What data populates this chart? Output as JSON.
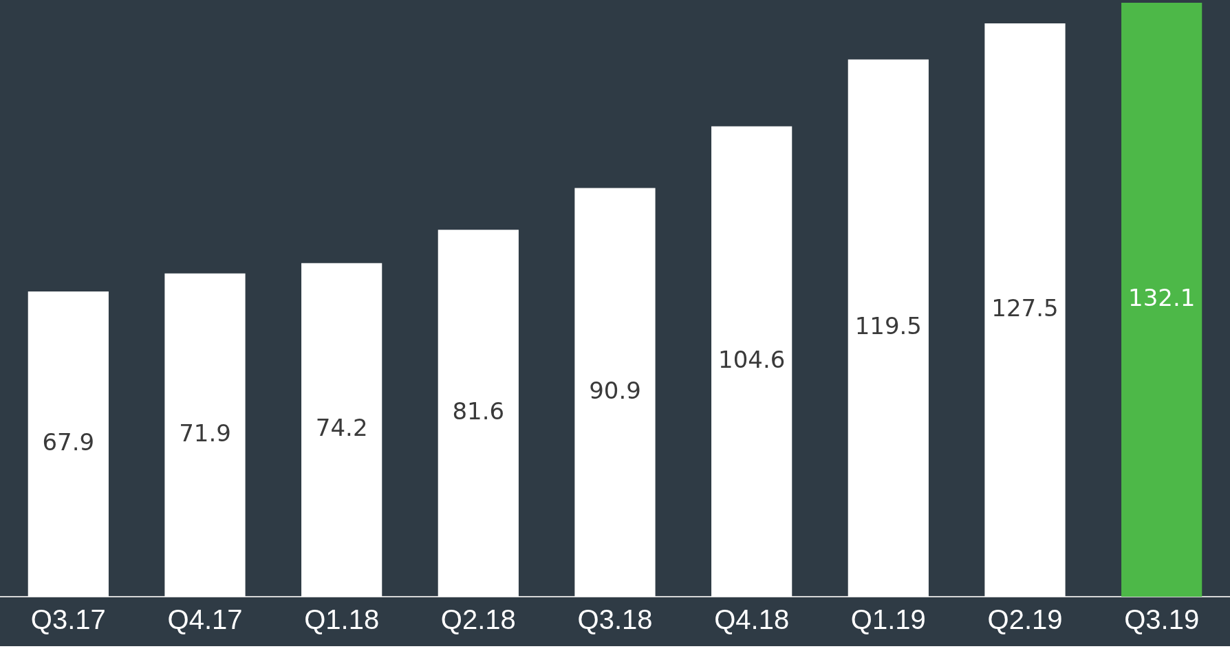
{
  "chart_data": {
    "type": "bar",
    "categories": [
      "Q3.17",
      "Q4.17",
      "Q1.18",
      "Q2.18",
      "Q3.18",
      "Q4.18",
      "Q1.19",
      "Q2.19",
      "Q3.19"
    ],
    "values": [
      67.9,
      71.9,
      74.2,
      81.6,
      90.9,
      104.6,
      119.5,
      127.5,
      132.1
    ],
    "colors": [
      "#ffffff",
      "#ffffff",
      "#ffffff",
      "#ffffff",
      "#ffffff",
      "#ffffff",
      "#ffffff",
      "#ffffff",
      "#4db848"
    ],
    "data_labels": true,
    "grid": false,
    "legend": false
  }
}
